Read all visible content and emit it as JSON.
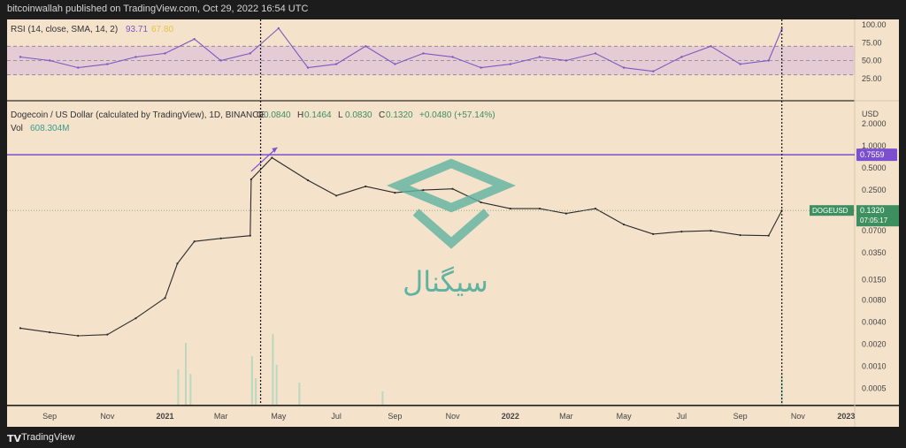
{
  "header": {
    "published": "bitcoinwallah published on TradingView.com, Oct 29, 2022 16:54 UTC"
  },
  "footer": {
    "brand": "TradingView",
    "logo_icon": "tradingview-logo-icon"
  },
  "colors": {
    "background": "#f4e2cb",
    "rsi_line": "#7e57c2",
    "rsi_ma": "#e3c44a",
    "price_line": "#2b2b2b",
    "level_line": "#7b4fd0",
    "badge_green": "#3e8f5f",
    "volume": "#b9d8bf",
    "watermark": "#5fb3a0"
  },
  "rsi": {
    "legend": "RSI (14, close, SMA, 14, 2)",
    "value": "93.71",
    "ma_value": "67.80",
    "levels": [
      70,
      50,
      30
    ],
    "axis_labels": [
      "100.00",
      "75.00",
      "50.00",
      "25.00"
    ],
    "axis_values": [
      100,
      75,
      50,
      25
    ]
  },
  "main": {
    "legend_symbol": "Dogecoin / US Dollar (calculated by TradingView), 1D, BINANCE",
    "ohlc": {
      "o_label": "O",
      "o": "0.0840",
      "h_label": "H",
      "h": "0.1464",
      "l_label": "L",
      "l": "0.0830",
      "c_label": "C",
      "c": "0.1320",
      "change": "+0.0480 (+57.14%)"
    },
    "vol_label": "Vol",
    "vol_value": "608.304M",
    "currency": "USD",
    "axis_labels": [
      "2.0000",
      "1.0000",
      "0.5000",
      "0.2500",
      "0.0700",
      "0.0350",
      "0.0150",
      "0.0080",
      "0.0040",
      "0.0020",
      "0.0010",
      "0.0005"
    ],
    "axis_values": [
      2.0,
      1.0,
      0.5,
      0.25,
      0.07,
      0.035,
      0.015,
      0.008,
      0.004,
      0.002,
      0.001,
      0.0005
    ],
    "level_value": "0.7559",
    "price_badge": {
      "symbol": "DOGEUSD",
      "price": "0.1320",
      "countdown": "07:05:17"
    }
  },
  "time_axis": [
    "Sep",
    "Nov",
    "2021",
    "Mar",
    "May",
    "Jul",
    "Sep",
    "Nov",
    "2022",
    "Mar",
    "May",
    "Jul",
    "Sep",
    "Nov",
    "2023"
  ],
  "watermark": {
    "text": "سیگنال",
    "icon": "signal-logo-icon"
  },
  "chart_data": [
    {
      "type": "line",
      "title": "",
      "series": [
        {
          "name": "RSI (14, close, SMA, 14, 2)",
          "x": [
            "2020-08",
            "2020-09",
            "2020-10",
            "2020-11",
            "2020-12",
            "2021-01",
            "2021-02",
            "2021-03",
            "2021-04",
            "2021-05",
            "2021-06",
            "2021-07",
            "2021-08",
            "2021-09",
            "2021-10",
            "2021-11",
            "2021-12",
            "2022-01",
            "2022-02",
            "2022-03",
            "2022-04",
            "2022-05",
            "2022-06",
            "2022-07",
            "2022-08",
            "2022-09",
            "2022-10",
            "2022-10-29"
          ],
          "y": [
            55,
            50,
            40,
            45,
            55,
            60,
            80,
            50,
            60,
            95,
            40,
            45,
            70,
            45,
            60,
            55,
            40,
            45,
            55,
            50,
            60,
            40,
            35,
            55,
            70,
            45,
            50,
            94
          ]
        }
      ],
      "ylim": [
        0,
        100
      ],
      "levels": [
        70,
        50,
        30
      ]
    },
    {
      "type": "line",
      "title": "Dogecoin / US Dollar (calculated by TradingView), 1D, BINANCE",
      "ylabel": "USD",
      "scale": "log",
      "series": [
        {
          "name": "DOGEUSD",
          "x": [
            "2020-08",
            "2020-09",
            "2020-10",
            "2020-11",
            "2020-12",
            "2021-01",
            "2021-01-28",
            "2021-02",
            "2021-03",
            "2021-04",
            "2021-04-16",
            "2021-05-08",
            "2021-06",
            "2021-07",
            "2021-08",
            "2021-09",
            "2021-10",
            "2021-11",
            "2021-12",
            "2022-01",
            "2022-02",
            "2022-03",
            "2022-04",
            "2022-05",
            "2022-06",
            "2022-07",
            "2022-08",
            "2022-09",
            "2022-10",
            "2022-10-29"
          ],
          "y": [
            0.0033,
            0.0029,
            0.0026,
            0.0027,
            0.0045,
            0.0085,
            0.025,
            0.05,
            0.055,
            0.06,
            0.35,
            0.69,
            0.34,
            0.21,
            0.28,
            0.23,
            0.25,
            0.26,
            0.17,
            0.14,
            0.14,
            0.12,
            0.14,
            0.085,
            0.063,
            0.068,
            0.07,
            0.061,
            0.06,
            0.132
          ]
        }
      ],
      "horizontal_line": 0.7559,
      "ylim": [
        0.0003,
        4.0
      ]
    }
  ]
}
